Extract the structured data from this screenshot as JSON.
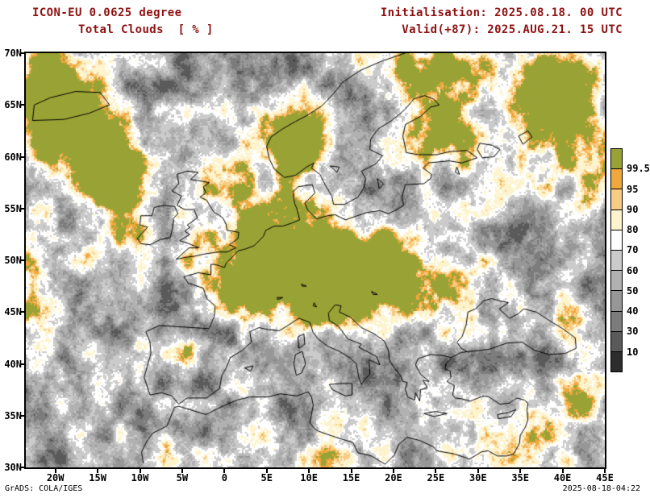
{
  "header": {
    "model": "ICON-EU 0.0625 degree",
    "variable": "Total Clouds  [ % ]",
    "initialisation": "Initialisation: 2025.08.18. 00 UTC",
    "valid": "Valid(+87): 2025.AUG.21. 15 UTC",
    "title_color": "#8e1212"
  },
  "map": {
    "x_axis_labels": [
      "20W",
      "15W",
      "10W",
      "5W",
      "0",
      "5E",
      "10E",
      "15E",
      "20E",
      "25E",
      "30E",
      "35E",
      "40E",
      "45E"
    ],
    "y_axis_labels": [
      "70N",
      "65N",
      "60N",
      "55N",
      "50N",
      "45N",
      "40N",
      "35N",
      "30N"
    ]
  },
  "colorbar": {
    "boundary_labels": [
      "99.5",
      "95",
      "90",
      "80",
      "70",
      "60",
      "50",
      "40",
      "30",
      "10"
    ],
    "segment_colors_top_to_bottom": [
      "#99a335",
      "#f0a73c",
      "#f8cc83",
      "#fdf3cd",
      "#ffffff",
      "#cbcbcb",
      "#b1b1b1",
      "#979797",
      "#7c7c7c",
      "#5a5a5a",
      "#2d2d2d"
    ]
  },
  "footer": {
    "credit": "GrADS: COLA/IGES",
    "generated": "2025-08-18-04:22"
  }
}
